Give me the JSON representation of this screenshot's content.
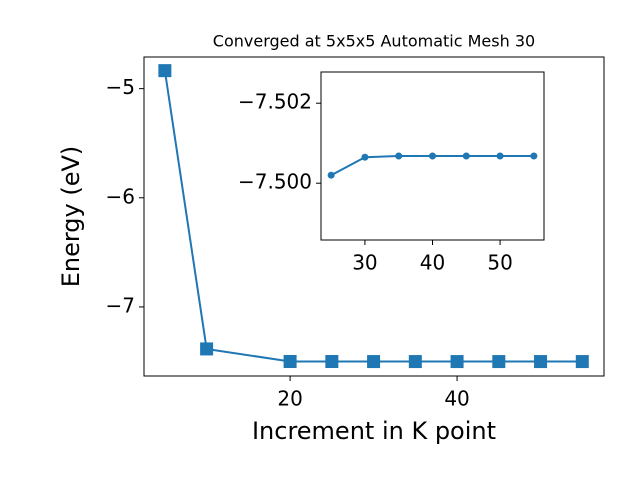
{
  "chart_data": [
    {
      "type": "line",
      "title": "Converged at 5x5x5 Automatic Mesh 30",
      "xlabel": "Increment in K point",
      "ylabel": "Energy (eV)",
      "x": [
        5,
        10,
        20,
        25,
        30,
        35,
        40,
        45,
        50,
        55
      ],
      "series": [
        {
          "color": "#1f77b4",
          "marker": "square",
          "values": [
            -4.835,
            -7.385,
            -7.5,
            -7.5002,
            -7.5007,
            -7.5007,
            -7.5007,
            -7.5007,
            -7.5007,
            -7.5007
          ]
        }
      ],
      "xlim": [
        2.5,
        57.6
      ],
      "ylim": [
        -7.633,
        -4.71
      ],
      "xticks": [
        20,
        40
      ],
      "yticks": [
        {
          "value": -7,
          "label": "−7"
        },
        {
          "value": -6,
          "label": "−6"
        },
        {
          "value": -5,
          "label": "−5"
        }
      ]
    },
    {
      "type": "line",
      "x": [
        25,
        30,
        35,
        40,
        45,
        50,
        55
      ],
      "series": [
        {
          "color": "#1f77b4",
          "marker": "circle",
          "values": [
            -7.5002,
            -7.50065,
            -7.50068,
            -7.50068,
            -7.50068,
            -7.50068,
            -7.50068
          ]
        }
      ],
      "xlim": [
        23.5,
        56.5
      ],
      "ylim": [
        -7.49858,
        -7.50278
      ],
      "xticks": [
        30,
        40,
        50
      ],
      "yticks": [
        {
          "value": -7.5,
          "label": "−7.500"
        },
        {
          "value": -7.502,
          "label": "−7.502"
        }
      ]
    }
  ]
}
